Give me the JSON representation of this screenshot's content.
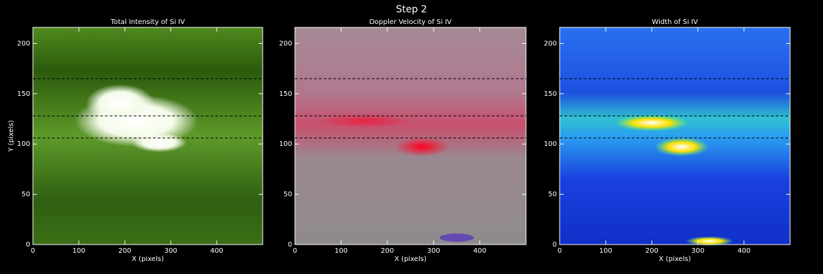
{
  "title": "Step 2",
  "chart_data": [
    {
      "type": "heatmap",
      "title": "Total Intensity of Si IV",
      "xlabel": "X (pixels)",
      "ylabel": "Y (pixels)",
      "xlim": [
        0,
        500
      ],
      "ylim": [
        0,
        216
      ],
      "xticks": [
        0,
        100,
        200,
        300,
        400
      ],
      "yticks": [
        0,
        50,
        100,
        150,
        200
      ],
      "hlines": [
        165,
        128,
        106
      ]
    },
    {
      "type": "heatmap",
      "title": "Doppler Velocity of Si IV",
      "xlabel": "X (pixels)",
      "xlim": [
        0,
        500
      ],
      "ylim": [
        0,
        216
      ],
      "xticks": [
        0,
        100,
        200,
        300,
        400
      ],
      "yticks": [
        0,
        50,
        100,
        150,
        200
      ],
      "hlines": [
        165,
        128,
        106
      ]
    },
    {
      "type": "heatmap",
      "title": "Width of Si IV",
      "xlabel": "X (pixels)",
      "xlim": [
        0,
        500
      ],
      "ylim": [
        0,
        216
      ],
      "xticks": [
        0,
        100,
        200,
        300,
        400
      ],
      "yticks": [
        0,
        50,
        100,
        150,
        200
      ],
      "hlines": [
        165,
        128,
        106
      ]
    }
  ]
}
